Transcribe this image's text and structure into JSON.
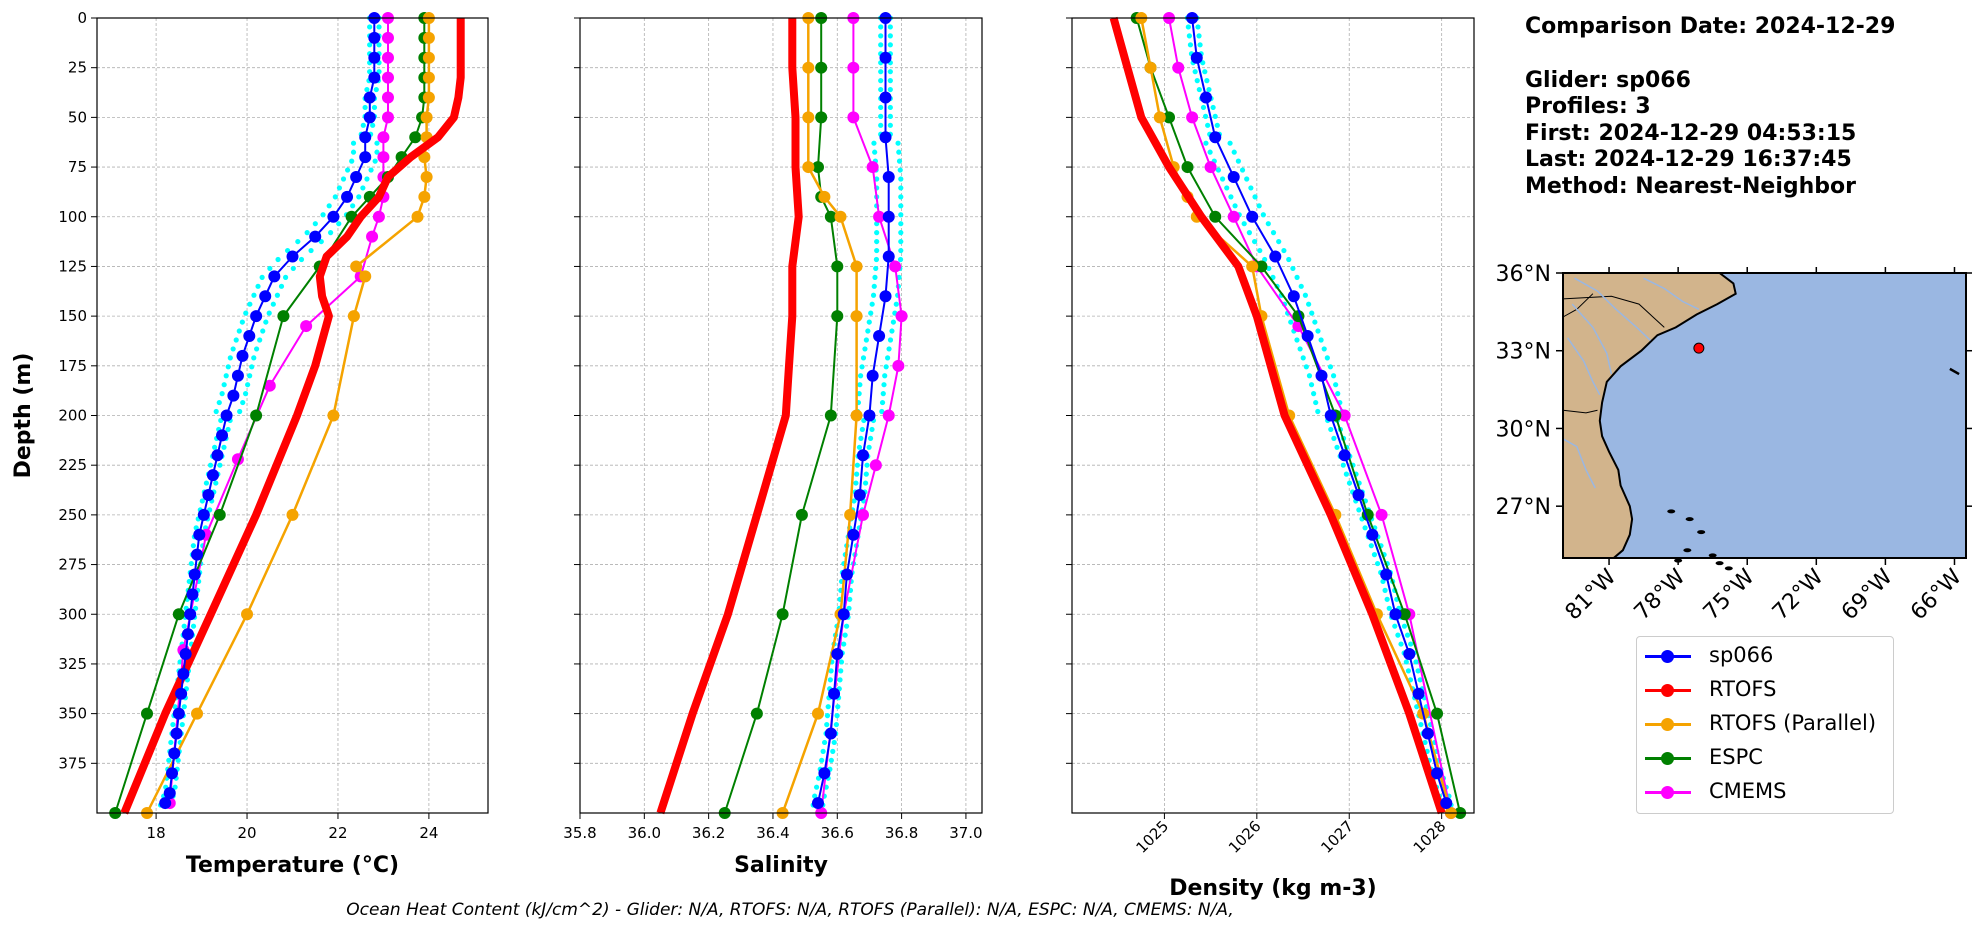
{
  "info": {
    "comparison_date": "Comparison Date: 2024-12-29",
    "glider": "Glider: sp066",
    "profiles": "Profiles: 3",
    "first": "First: 2024-12-29 04:53:15",
    "last": "Last: 2024-12-29 16:37:45",
    "method": "Method: Nearest-Neighbor"
  },
  "footer": "Ocean Heat Content (kJ/cm^2) - Glider: N/A,  RTOFS: N/A,  RTOFS (Parallel): N/A,  ESPC: N/A,  CMEMS: N/A,",
  "colors": {
    "sp066": "#0000ff",
    "rtofs": "#ff0000",
    "rtofs_parallel": "#f5a300",
    "espc": "#008000",
    "cmems": "#ff00ff",
    "glider_envelope": "#00ffff",
    "land": "#d2b48c",
    "ocean": "#9ab7e2"
  },
  "legend": [
    {
      "label": "sp066",
      "color": "#0000ff"
    },
    {
      "label": "RTOFS",
      "color": "#ff0000"
    },
    {
      "label": "RTOFS (Parallel)",
      "color": "#f5a300"
    },
    {
      "label": "ESPC",
      "color": "#008000"
    },
    {
      "label": "CMEMS",
      "color": "#ff00ff"
    }
  ],
  "chart_data": [
    {
      "type": "line",
      "xlabel": "Temperature (°C)",
      "ylabel": "Depth (m)",
      "xlim": [
        16.7,
        25.3
      ],
      "ylim": [
        400,
        0
      ],
      "xticks": [
        18,
        20,
        22,
        24
      ],
      "yticks": [
        0,
        25,
        50,
        75,
        100,
        125,
        150,
        175,
        200,
        225,
        250,
        275,
        300,
        325,
        350,
        375
      ],
      "grid": true,
      "series": [
        {
          "name": "sp066",
          "depth": [
            0,
            10,
            20,
            30,
            40,
            50,
            60,
            70,
            80,
            90,
            100,
            110,
            120,
            130,
            140,
            150,
            160,
            170,
            180,
            190,
            200,
            210,
            220,
            230,
            240,
            250,
            260,
            270,
            280,
            290,
            300,
            310,
            320,
            330,
            340,
            350,
            360,
            370,
            380,
            390,
            395
          ],
          "values": [
            22.8,
            22.8,
            22.8,
            22.8,
            22.7,
            22.7,
            22.6,
            22.6,
            22.4,
            22.2,
            21.9,
            21.5,
            21,
            20.6,
            20.4,
            20.2,
            20.05,
            19.9,
            19.8,
            19.7,
            19.55,
            19.45,
            19.35,
            19.25,
            19.15,
            19.05,
            18.95,
            18.9,
            18.85,
            18.8,
            18.75,
            18.7,
            18.65,
            18.6,
            18.55,
            18.5,
            18.45,
            18.4,
            18.35,
            18.3,
            18.2
          ]
        },
        {
          "name": "RTOFS",
          "depth": [
            0,
            10,
            20,
            30,
            40,
            50,
            60,
            70,
            80,
            90,
            100,
            110,
            120,
            130,
            140,
            150,
            175,
            200,
            250,
            300,
            350,
            400
          ],
          "values": [
            24.7,
            24.7,
            24.7,
            24.7,
            24.65,
            24.55,
            24.2,
            23.6,
            23.1,
            22.9,
            22.5,
            22.2,
            21.75,
            21.6,
            21.65,
            21.8,
            21.5,
            21.1,
            20.2,
            19.2,
            18.2,
            17.3
          ]
        },
        {
          "name": "RTOFS (Parallel)",
          "depth": [
            0,
            10,
            20,
            30,
            40,
            50,
            60,
            70,
            80,
            90,
            100,
            125,
            130,
            150,
            200,
            250,
            300,
            350,
            400
          ],
          "values": [
            24,
            24,
            24,
            24,
            24,
            23.95,
            23.95,
            23.9,
            23.95,
            23.9,
            23.75,
            22.4,
            22.6,
            22.35,
            21.9,
            21,
            20,
            18.9,
            17.8
          ]
        },
        {
          "name": "ESPC",
          "depth": [
            0,
            10,
            20,
            30,
            40,
            50,
            60,
            70,
            80,
            90,
            100,
            125,
            150,
            200,
            250,
            300,
            350,
            400
          ],
          "values": [
            23.9,
            23.9,
            23.9,
            23.9,
            23.9,
            23.85,
            23.7,
            23.4,
            23.1,
            22.7,
            22.3,
            21.6,
            20.8,
            20.2,
            19.4,
            18.5,
            17.8,
            17.1
          ]
        },
        {
          "name": "CMEMS",
          "depth": [
            0,
            10,
            20,
            30,
            40,
            50,
            60,
            70,
            80,
            90,
            100,
            110,
            130,
            155,
            185,
            222,
            260,
            318,
            395
          ],
          "values": [
            23.1,
            23.1,
            23.1,
            23.1,
            23.1,
            23.1,
            23.0,
            23.0,
            23.0,
            23.0,
            22.9,
            22.75,
            22.5,
            21.3,
            20.5,
            19.8,
            19.1,
            18.6,
            18.3
          ]
        }
      ]
    },
    {
      "type": "line",
      "xlabel": "Salinity",
      "ylabel": "",
      "xlim": [
        35.8,
        37.05
      ],
      "ylim": [
        400,
        0
      ],
      "xticks": [
        35.8,
        36.0,
        36.2,
        36.4,
        36.6,
        36.8,
        37.0
      ],
      "grid": true,
      "series": [
        {
          "name": "sp066",
          "depth": [
            0,
            20,
            40,
            60,
            80,
            100,
            120,
            140,
            160,
            180,
            200,
            220,
            240,
            260,
            280,
            300,
            320,
            340,
            360,
            380,
            395
          ],
          "values": [
            36.75,
            36.75,
            36.75,
            36.75,
            36.76,
            36.76,
            36.76,
            36.75,
            36.73,
            36.71,
            36.7,
            36.68,
            36.67,
            36.65,
            36.63,
            36.62,
            36.6,
            36.59,
            36.58,
            36.56,
            36.54
          ]
        },
        {
          "name": "RTOFS",
          "depth": [
            0,
            25,
            50,
            75,
            100,
            125,
            150,
            175,
            200,
            250,
            300,
            350,
            400
          ],
          "values": [
            36.46,
            36.46,
            36.47,
            36.47,
            36.48,
            36.46,
            36.46,
            36.45,
            36.44,
            36.35,
            36.26,
            36.15,
            36.05
          ]
        },
        {
          "name": "RTOFS (Parallel)",
          "depth": [
            0,
            25,
            50,
            75,
            90,
            100,
            125,
            150,
            200,
            250,
            300,
            350,
            400
          ],
          "values": [
            36.51,
            36.51,
            36.51,
            36.51,
            36.56,
            36.61,
            36.66,
            36.66,
            36.66,
            36.64,
            36.61,
            36.54,
            36.43
          ]
        },
        {
          "name": "ESPC",
          "depth": [
            0,
            25,
            50,
            75,
            90,
            100,
            125,
            150,
            200,
            250,
            300,
            350,
            400
          ],
          "values": [
            36.55,
            36.55,
            36.55,
            36.54,
            36.55,
            36.58,
            36.6,
            36.6,
            36.58,
            36.49,
            36.43,
            36.35,
            36.25
          ]
        },
        {
          "name": "CMEMS",
          "depth": [
            0,
            25,
            50,
            75,
            100,
            125,
            150,
            175,
            200,
            225,
            250,
            300,
            400
          ],
          "values": [
            36.65,
            36.65,
            36.65,
            36.71,
            36.73,
            36.78,
            36.8,
            36.79,
            36.76,
            36.72,
            36.68,
            36.62,
            36.55
          ]
        }
      ]
    },
    {
      "type": "line",
      "xlabel": "Density (kg m-3)",
      "ylabel": "",
      "xlim": [
        1024.0,
        1028.35
      ],
      "ylim": [
        400,
        0
      ],
      "xticks": [
        1025,
        1026,
        1027,
        1028
      ],
      "grid": true,
      "series": [
        {
          "name": "sp066",
          "depth": [
            0,
            20,
            40,
            60,
            80,
            100,
            120,
            140,
            160,
            180,
            200,
            220,
            240,
            260,
            280,
            300,
            320,
            340,
            360,
            380,
            395
          ],
          "values": [
            1025.3,
            1025.35,
            1025.45,
            1025.55,
            1025.75,
            1025.95,
            1026.2,
            1026.4,
            1026.55,
            1026.7,
            1026.8,
            1026.95,
            1027.1,
            1027.25,
            1027.4,
            1027.5,
            1027.65,
            1027.75,
            1027.85,
            1027.95,
            1028.05
          ]
        },
        {
          "name": "RTOFS",
          "depth": [
            0,
            25,
            50,
            75,
            100,
            125,
            150,
            200,
            250,
            300,
            350,
            400
          ],
          "values": [
            1024.45,
            1024.6,
            1024.75,
            1025.05,
            1025.4,
            1025.8,
            1026.0,
            1026.3,
            1026.8,
            1027.25,
            1027.65,
            1028.0
          ]
        },
        {
          "name": "RTOFS (Parallel)",
          "depth": [
            0,
            25,
            50,
            75,
            90,
            100,
            125,
            150,
            200,
            250,
            300,
            350,
            400
          ],
          "values": [
            1024.75,
            1024.85,
            1024.95,
            1025.1,
            1025.25,
            1025.35,
            1025.95,
            1026.05,
            1026.35,
            1026.85,
            1027.3,
            1027.8,
            1028.1
          ]
        },
        {
          "name": "ESPC",
          "depth": [
            0,
            25,
            50,
            75,
            100,
            125,
            150,
            200,
            250,
            300,
            350,
            400
          ],
          "values": [
            1024.7,
            1024.85,
            1025.05,
            1025.25,
            1025.55,
            1026.05,
            1026.45,
            1026.85,
            1027.2,
            1027.6,
            1027.95,
            1028.2
          ]
        },
        {
          "name": "CMEMS",
          "depth": [
            0,
            25,
            50,
            75,
            100,
            125,
            155,
            200,
            250,
            300,
            400
          ],
          "values": [
            1025.05,
            1025.15,
            1025.3,
            1025.5,
            1025.75,
            1026.0,
            1026.45,
            1026.95,
            1027.35,
            1027.65,
            1028.1
          ]
        }
      ]
    },
    {
      "type": "map",
      "xticks": [
        "81°W",
        "78°W",
        "75°W",
        "72°W",
        "69°W",
        "66°W"
      ],
      "yticks": [
        "36°N",
        "33°N",
        "30°N",
        "27°N"
      ],
      "xlim": [
        -83,
        -65.5
      ],
      "ylim": [
        25,
        36
      ],
      "glider_position": {
        "lon": -77.1,
        "lat": 33.1
      }
    }
  ]
}
